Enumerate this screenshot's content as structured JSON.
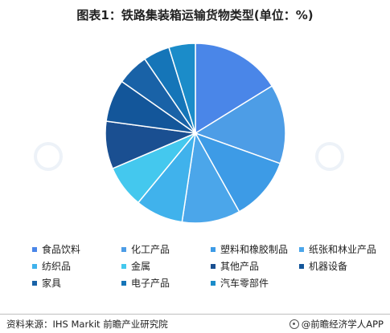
{
  "chart_data": {
    "type": "pie",
    "title": "图表1：铁路集装箱运输货物类型(单位：%)",
    "slices": [
      {
        "label": "食品饮料",
        "value": 17,
        "color": "#4a86e8"
      },
      {
        "label": "化工产品",
        "value": 15,
        "color": "#4d9de6"
      },
      {
        "label": "塑料和橡胶制品",
        "value": 12,
        "color": "#3d9be6"
      },
      {
        "label": "纸张和林业产品",
        "value": 11,
        "color": "#4ba6ea"
      },
      {
        "label": "纺织品",
        "value": 9,
        "color": "#40b2ec"
      },
      {
        "label": "金属",
        "value": 8,
        "color": "#44c8ee"
      },
      {
        "label": "其他产品",
        "value": 9,
        "color": "#1a4f91"
      },
      {
        "label": "机器设备",
        "value": 8,
        "color": "#13569a"
      },
      {
        "label": "家具",
        "value": 6,
        "color": "#1962a7"
      },
      {
        "label": "电子产品",
        "value": 5,
        "color": "#1575b8"
      },
      {
        "label": "汽车零部件",
        "value": 5,
        "color": "#1b8cc9"
      }
    ]
  },
  "footer": {
    "source": "资料来源：IHS Markit 前瞻产业研究院",
    "brand": "@前瞻经济学人APP"
  },
  "watermark": {
    "brand": "前瞻产业研究院"
  }
}
